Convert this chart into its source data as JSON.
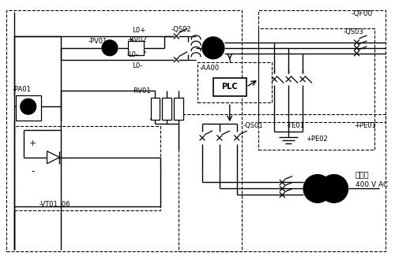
{
  "bg": "#ffffff",
  "lc": "#000000",
  "fig_w": 5.0,
  "fig_h": 3.3,
  "dpi": 100,
  "labels": {
    "PA01": "-PA01",
    "PV01": "-PV01",
    "RV02": "-RV02",
    "L0p": "L0+",
    "L0m": "L0-",
    "QS02": "-QS02",
    "QF00": "-QF00",
    "AA00": "-AA00",
    "PLC": "PLC",
    "QS03": "-QS03",
    "PE02": "+PE02",
    "RV01": "-RV01",
    "QS01": "-QS01",
    "TE01": "-TE01",
    "PE01": "+PE01",
    "VT": "-VT01..06",
    "plant": "厂用电",
    "vac": "400 V AC"
  }
}
